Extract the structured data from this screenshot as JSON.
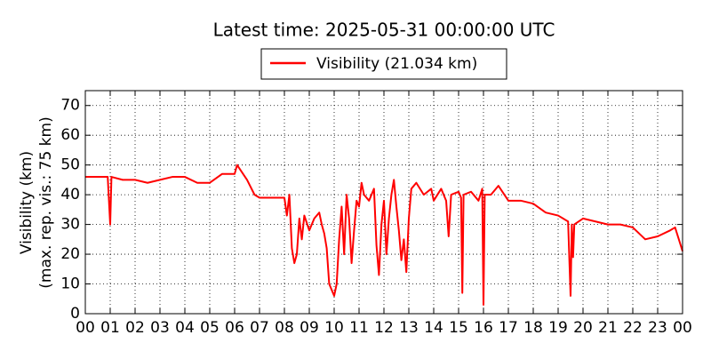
{
  "chart_data": {
    "type": "line",
    "title": "Latest time: 2025-05-31 00:00:00 UTC",
    "ylabel": [
      "Visibility (km)",
      "(max. rep. vis.: 75 km)"
    ],
    "xlim": [
      0,
      24
    ],
    "ylim": [
      0,
      75
    ],
    "xticks": [
      {
        "value": 0,
        "label": "00"
      },
      {
        "value": 1,
        "label": "01"
      },
      {
        "value": 2,
        "label": "02"
      },
      {
        "value": 3,
        "label": "03"
      },
      {
        "value": 4,
        "label": "04"
      },
      {
        "value": 5,
        "label": "05"
      },
      {
        "value": 6,
        "label": "06"
      },
      {
        "value": 7,
        "label": "07"
      },
      {
        "value": 8,
        "label": "08"
      },
      {
        "value": 9,
        "label": "09"
      },
      {
        "value": 10,
        "label": "10"
      },
      {
        "value": 11,
        "label": "11"
      },
      {
        "value": 12,
        "label": "12"
      },
      {
        "value": 13,
        "label": "13"
      },
      {
        "value": 14,
        "label": "14"
      },
      {
        "value": 15,
        "label": "15"
      },
      {
        "value": 16,
        "label": "16"
      },
      {
        "value": 17,
        "label": "17"
      },
      {
        "value": 18,
        "label": "18"
      },
      {
        "value": 19,
        "label": "19"
      },
      {
        "value": 20,
        "label": "20"
      },
      {
        "value": 21,
        "label": "21"
      },
      {
        "value": 22,
        "label": "22"
      },
      {
        "value": 23,
        "label": "23"
      },
      {
        "value": 24,
        "label": "00"
      }
    ],
    "yticks": [
      0,
      10,
      20,
      30,
      40,
      50,
      60,
      70
    ],
    "grid": true,
    "x": [
      0,
      0.5,
      0.9,
      1.0,
      1.05,
      1.5,
      2,
      2.5,
      3,
      3.5,
      4,
      4.5,
      5,
      5.5,
      6,
      6.1,
      6.5,
      6.8,
      7,
      7.5,
      8,
      8.1,
      8.2,
      8.3,
      8.4,
      8.5,
      8.6,
      8.7,
      8.8,
      9,
      9.2,
      9.4,
      9.5,
      9.6,
      9.7,
      9.8,
      9.9,
      10,
      10.1,
      10.2,
      10.3,
      10.4,
      10.5,
      10.6,
      10.7,
      10.8,
      10.9,
      11,
      11.1,
      11.2,
      11.4,
      11.6,
      11.7,
      11.8,
      11.9,
      12,
      12.1,
      12.2,
      12.3,
      12.4,
      12.5,
      12.6,
      12.7,
      12.8,
      12.9,
      13,
      13.1,
      13.3,
      13.6,
      13.9,
      14,
      14.3,
      14.5,
      14.6,
      14.7,
      15,
      15.1,
      15.15,
      15.2,
      15.5,
      15.8,
      15.95,
      16,
      16.05,
      16.3,
      16.6,
      17,
      17.5,
      18,
      18.5,
      19,
      19.4,
      19.5,
      19.55,
      19.6,
      19.65,
      20,
      20.5,
      21,
      21.5,
      22,
      22.5,
      23,
      23.5,
      23.7,
      24
    ],
    "series": [
      {
        "name": "Visibility (21.034 km)",
        "color": "#ff0000",
        "values": [
          46,
          46,
          46,
          30,
          46,
          45,
          45,
          44,
          45,
          46,
          46,
          44,
          44,
          47,
          47,
          50,
          45,
          40,
          39,
          39,
          39,
          33,
          40,
          22,
          17,
          20,
          32,
          25,
          33,
          28,
          32,
          34,
          30,
          27,
          22,
          10,
          8,
          6,
          10,
          25,
          36,
          20,
          40,
          32,
          17,
          28,
          38,
          36,
          44,
          40,
          38,
          42,
          23,
          13,
          30,
          38,
          20,
          32,
          40,
          45,
          36,
          28,
          18,
          25,
          14,
          32,
          42,
          44,
          40,
          42,
          38,
          42,
          38,
          26,
          40,
          41,
          39,
          7,
          40,
          41,
          38,
          42,
          3,
          40,
          40,
          43,
          38,
          38,
          37,
          34,
          33,
          31,
          6,
          30,
          19,
          30,
          32,
          31,
          30,
          30,
          29,
          25,
          26,
          28,
          29,
          21
        ]
      }
    ]
  }
}
